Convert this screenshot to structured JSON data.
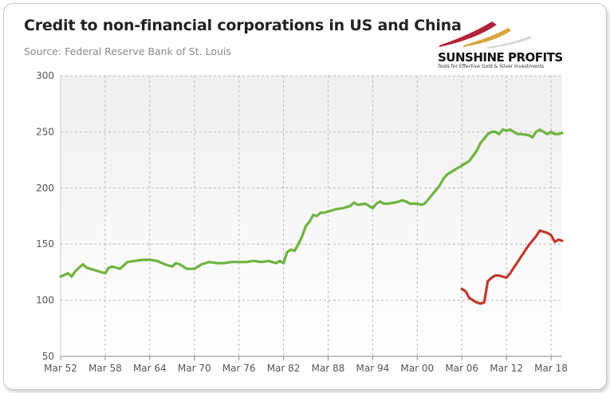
{
  "title": "Credit to non-financial corporations in US and China",
  "subtitle": "Source: Federal Reserve Bank of St. Louis",
  "logo": {
    "name": "SUNSHINE PROFITS",
    "tagline": "Tools for Effective Gold & Silver Investments"
  },
  "colors": {
    "us_line": "#6db33f",
    "china_line": "#c0392b",
    "plot_background_top": "#efefef",
    "plot_background_bottom": "#ffffff",
    "grid": "#b8b8b8"
  },
  "chart_data": {
    "type": "line",
    "title": "Credit to non-financial corporations in US and China",
    "xlabel": "",
    "ylabel": "",
    "xlim": [
      1952.0,
      2019.5
    ],
    "ylim": [
      50,
      300
    ],
    "yticks": [
      50,
      100,
      150,
      200,
      250,
      300
    ],
    "xticks": [
      {
        "label": "Mar 52",
        "x": 1952
      },
      {
        "label": "Mar 58",
        "x": 1958
      },
      {
        "label": "Mar 64",
        "x": 1964
      },
      {
        "label": "Mar 70",
        "x": 1970
      },
      {
        "label": "Mar 76",
        "x": 1976
      },
      {
        "label": "Mar 82",
        "x": 1982
      },
      {
        "label": "Mar 88",
        "x": 1988
      },
      {
        "label": "Mar 94",
        "x": 1994
      },
      {
        "label": "Mar 00",
        "x": 2000
      },
      {
        "label": "Mar 06",
        "x": 2006
      },
      {
        "label": "Mar 12",
        "x": 2012
      },
      {
        "label": "Mar 18",
        "x": 2018
      }
    ],
    "grid": true,
    "legend": "none",
    "series": [
      {
        "color": "#6db33f",
        "x": [
          1952.0,
          1953.0,
          1953.5,
          1954.0,
          1955.0,
          1955.5,
          1956.0,
          1957.0,
          1958.0,
          1958.5,
          1959.0,
          1960.0,
          1960.5,
          1961.0,
          1962.0,
          1963.0,
          1964.0,
          1965.0,
          1966.0,
          1967.0,
          1967.5,
          1968.0,
          1969.0,
          1970.0,
          1971.0,
          1972.0,
          1973.0,
          1974.0,
          1975.0,
          1976.0,
          1977.0,
          1978.0,
          1979.0,
          1980.0,
          1981.0,
          1981.5,
          1982.0,
          1982.5,
          1983.0,
          1983.5,
          1984.0,
          1984.5,
          1985.0,
          1985.5,
          1986.0,
          1986.5,
          1987.0,
          1987.5,
          1988.0,
          1989.0,
          1990.0,
          1991.0,
          1991.5,
          1992.0,
          1993.0,
          1994.0,
          1994.5,
          1995.0,
          1995.5,
          1996.0,
          1997.0,
          1998.0,
          1998.5,
          1999.0,
          2000.0,
          2000.5,
          2001.0,
          2001.5,
          2002.0,
          2003.0,
          2003.5,
          2004.0,
          2004.5,
          2005.0,
          2005.5,
          2006.0,
          2007.0,
          2008.0,
          2008.5,
          2009.0,
          2009.5,
          2010.0,
          2010.5,
          2011.0,
          2011.5,
          2012.0,
          2012.5,
          2013.0,
          2013.5,
          2014.0,
          2015.0,
          2015.5,
          2016.0,
          2016.5,
          2017.0,
          2017.5,
          2018.0,
          2018.5,
          2019.0,
          2019.5
        ],
        "y": [
          121,
          124,
          121,
          126,
          132,
          129,
          128,
          126,
          124,
          129,
          130,
          128,
          131,
          134,
          135,
          136,
          136,
          135,
          132,
          130,
          133,
          132,
          128,
          128,
          132,
          134,
          133,
          133,
          134,
          134,
          134,
          135,
          134,
          135,
          133,
          135,
          133,
          143,
          145,
          144,
          150,
          157,
          166,
          170,
          176,
          175,
          178,
          178,
          179,
          181,
          182,
          184,
          187,
          185,
          186,
          182,
          186,
          188,
          186,
          186,
          187,
          189,
          188,
          186,
          186,
          185,
          186,
          190,
          194,
          202,
          208,
          212,
          214,
          216,
          218,
          220,
          224,
          233,
          240,
          244,
          248,
          250,
          250,
          248,
          252,
          251,
          252,
          250,
          248,
          248,
          247,
          245,
          250,
          252,
          250,
          248,
          250,
          248,
          248,
          249
        ]
      },
      {
        "color": "#c0392b",
        "x": [
          2006.0,
          2006.5,
          2007.0,
          2007.5,
          2008.0,
          2008.5,
          2009.0,
          2009.5,
          2010.0,
          2010.5,
          2011.0,
          2011.5,
          2012.0,
          2012.5,
          2013.0,
          2013.5,
          2014.0,
          2014.5,
          2015.0,
          2015.5,
          2016.0,
          2016.5,
          2017.0,
          2017.5,
          2018.0,
          2018.5,
          2019.0,
          2019.5
        ],
        "y": [
          110,
          108,
          102,
          100,
          98,
          97,
          98,
          117,
          120,
          122,
          122,
          121,
          120,
          124,
          129,
          134,
          139,
          144,
          149,
          153,
          157,
          162,
          161,
          160,
          158,
          152,
          154,
          153
        ]
      }
    ]
  }
}
